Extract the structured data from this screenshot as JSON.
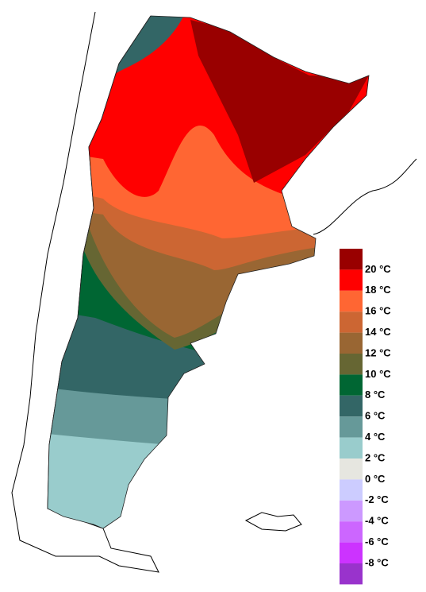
{
  "legend": {
    "labels": [
      "20 °C",
      "18 °C",
      "16 °C",
      "14 °C",
      "12 °C",
      "10 °C",
      "8 °C",
      "6 °C",
      "4 °C",
      "2 °C",
      "0 °C",
      "-2 °C",
      "-4 °C",
      "-6 °C",
      "-8 °C"
    ],
    "colors": [
      "#990000",
      "#ff0000",
      "#ff6633",
      "#cc6633",
      "#996633",
      "#666633",
      "#006633",
      "#336666",
      "#669999",
      "#99cccc",
      "#e6e6e0",
      "#ccccff",
      "#cc99ff",
      "#cc66ff",
      "#cc33ff",
      "#9933cc"
    ]
  }
}
